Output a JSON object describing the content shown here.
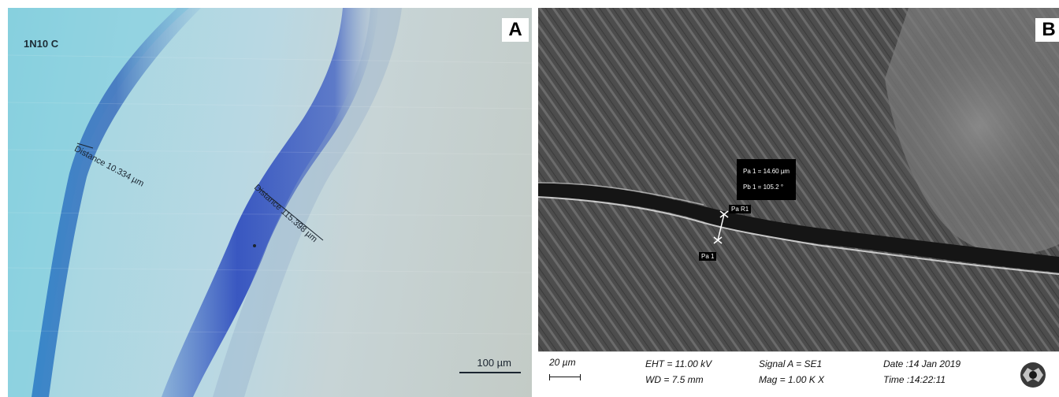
{
  "panel_a": {
    "letter": "A",
    "sample_code": "1N10 C",
    "measurement_1": "Distance 10.334 µm",
    "measurement_2": "Distance 115.398 µm",
    "scale_bar": "100 µm"
  },
  "panel_b": {
    "letter": "B",
    "measure_box": {
      "line1": "Pa 1 = 14.60 µm",
      "line2": "Pb 1 = 105.2 °"
    },
    "label_pa_r1": "Pa R1",
    "label_pa_1": "Pa 1",
    "info_bar": {
      "scale": "20 µm",
      "eht": "EHT = 11.00 kV",
      "wd": "WD =  7.5 mm",
      "signal": "Signal A = SE1",
      "mag": "Mag =    1.00 K X",
      "date": "Date :14 Jan 2019",
      "time": "Time :14:22:11"
    }
  }
}
